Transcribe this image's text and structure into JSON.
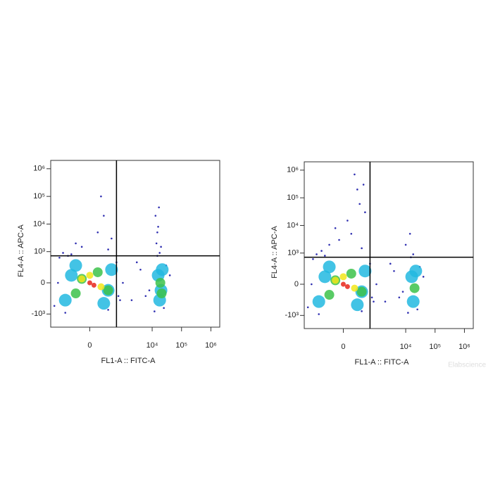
{
  "chart_data": [
    {
      "type": "scatter",
      "xscale": "biexponential",
      "yscale": "biexponential",
      "x_label": "FL1-A :: FITC-A",
      "y_label": "FL4-A :: APC-A",
      "xlim": [
        -1600,
        2000000
      ],
      "ylim": [
        -3000,
        2000000
      ],
      "xticks": [
        0,
        {
          "value": 10000,
          "label": "10⁴"
        },
        {
          "value": 100000,
          "label": "10⁵"
        },
        {
          "value": 1000000,
          "label": "10⁶"
        }
      ],
      "yticks": [
        {
          "value": -1000,
          "label": "-10³"
        },
        0,
        {
          "value": 1000,
          "label": "10³"
        },
        {
          "value": 10000,
          "label": "10⁴"
        },
        {
          "value": 100000,
          "label": "10⁵"
        },
        {
          "value": 1000000,
          "label": "10⁶"
        }
      ],
      "gate": {
        "x": 600,
        "y": 700
      },
      "series": [
        {
          "color": "#1a1aa8",
          "x": [
            -1200,
            -800,
            -500,
            -300,
            300,
            600,
            800,
            -600,
            -200,
            100,
            400,
            200,
            -100,
            300,
            -400,
            150,
            1000,
            2000,
            4000,
            8000,
            3000,
            6000,
            12000,
            15000,
            18000,
            25000,
            30000,
            40000,
            14000,
            16000,
            13000,
            17000,
            15000,
            20000,
            -900,
            700
          ],
          "y": [
            -500,
            600,
            -900,
            800,
            -700,
            400,
            -300,
            900,
            2000,
            5000,
            3000,
            20000,
            1500,
            1200,
            700,
            100000,
            0,
            -300,
            200,
            -100,
            400,
            -200,
            -800,
            700,
            900,
            -600,
            300,
            100,
            2000,
            8000,
            20000,
            40000,
            5000,
            1500,
            0,
            -200
          ]
        },
        {
          "color": "#22b8e0",
          "x": [
            -500,
            -200,
            200,
            400,
            -300,
            300,
            18000,
            22000,
            16000,
            20000
          ],
          "y": [
            -300,
            300,
            -400,
            200,
            100,
            -100,
            -300,
            200,
            100,
            -100
          ]
        },
        {
          "color": "#3cc24a",
          "x": [
            -200,
            100,
            300,
            -100,
            19000,
            21000
          ],
          "y": [
            -150,
            150,
            -100,
            50,
            0,
            -150
          ]
        },
        {
          "color": "#f2e619",
          "x": [
            -100,
            150,
            0
          ],
          "y": [
            50,
            -50,
            100
          ]
        },
        {
          "color": "#e8261a",
          "x": [
            0,
            50
          ],
          "y": [
            0,
            -30
          ]
        }
      ]
    },
    {
      "type": "scatter",
      "xscale": "biexponential",
      "yscale": "biexponential",
      "x_label": "FL1-A :: FITC-A",
      "y_label": "FL4-A :: APC-A",
      "xlim": [
        -1600,
        2000000
      ],
      "ylim": [
        -3000,
        2000000
      ],
      "xticks": [
        0,
        {
          "value": 10000,
          "label": "10⁴"
        },
        {
          "value": 100000,
          "label": "10⁵"
        },
        {
          "value": 1000000,
          "label": "10⁶"
        }
      ],
      "yticks": [
        {
          "value": -1000,
          "label": "-10³"
        },
        0,
        {
          "value": 1000,
          "label": "10³"
        },
        {
          "value": 10000,
          "label": "10⁴"
        },
        {
          "value": 100000,
          "label": "10⁵"
        },
        {
          "value": 1000000,
          "label": "10⁶"
        }
      ],
      "gate": {
        "x": 600,
        "y": 700
      },
      "series": [
        {
          "color": "#1a1aa8",
          "x": [
            -1200,
            -800,
            -500,
            -300,
            300,
            600,
            800,
            -600,
            -200,
            100,
            400,
            200,
            -100,
            300,
            -400,
            150,
            250,
            50,
            1000,
            2000,
            4000,
            8000,
            3000,
            6000,
            12000,
            15000,
            18000,
            25000,
            30000,
            40000,
            10000,
            14000,
            -900,
            700,
            350,
            -50
          ],
          "y": [
            -500,
            600,
            -900,
            800,
            -700,
            400,
            -300,
            900,
            2000,
            5000,
            30000,
            200000,
            8000,
            1500,
            1200,
            700000,
            60000,
            15000,
            0,
            -300,
            200,
            -100,
            400,
            -200,
            -800,
            700,
            900,
            -600,
            300,
            100,
            2000,
            5000,
            0,
            -200,
            300000,
            3000
          ]
        },
        {
          "color": "#22b8e0",
          "x": [
            -500,
            -200,
            200,
            400,
            -300,
            300,
            18000,
            22000,
            16000
          ],
          "y": [
            -300,
            300,
            -400,
            200,
            100,
            -100,
            -300,
            200,
            100
          ]
        },
        {
          "color": "#3cc24a",
          "x": [
            -200,
            100,
            300,
            -100,
            20000
          ],
          "y": [
            -150,
            150,
            -100,
            50,
            -50
          ]
        },
        {
          "color": "#f2e619",
          "x": [
            -100,
            150,
            0
          ],
          "y": [
            50,
            -50,
            100
          ]
        },
        {
          "color": "#e8261a",
          "x": [
            0,
            50
          ],
          "y": [
            0,
            -30
          ]
        }
      ]
    }
  ],
  "watermark": "Elabscience"
}
